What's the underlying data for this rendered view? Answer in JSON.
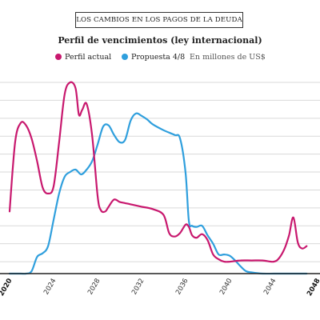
{
  "header": {
    "kicker": "LOS CAMBIOS EN LOS PAGOS DE LA DEUDA",
    "title": "Perfil de vencimientos (ley internacional)",
    "note": "En millones de US$"
  },
  "colors": {
    "actual": "#c8186e",
    "propuesta": "#2f9fdd",
    "grid": "#d9d9d9",
    "axis": "#222222"
  },
  "chart_data": {
    "type": "line",
    "title": "Perfil de vencimientos (ley internacional)",
    "xlabel": "",
    "ylabel": "",
    "units": "En millones de US$",
    "xlim": [
      2020,
      2047
    ],
    "ylim": [
      0,
      16000
    ],
    "grid": true,
    "legend": "top",
    "xticks": [
      "2020",
      "2024",
      "2028",
      "2032",
      "2036",
      "2040",
      "2044",
      "2048"
    ],
    "series": [
      {
        "name": "Perfil actual",
        "color": "#c8186e",
        "x": [
          2020,
          2020.5,
          2021,
          2021.5,
          2022,
          2022.5,
          2023,
          2023.5,
          2024,
          2024.5,
          2025,
          2025.5,
          2026,
          2026.3,
          2026.6,
          2027,
          2027.5,
          2028,
          2028.3,
          2028.7,
          2029,
          2029.5,
          2030,
          2030.5,
          2031,
          2032,
          2033,
          2034,
          2034.5,
          2035,
          2035.5,
          2036,
          2036.3,
          2036.6,
          2037,
          2037.5,
          2038,
          2038.5,
          2039,
          2039.5,
          2040,
          2041,
          2042,
          2043,
          2044,
          2044.5,
          2045,
          2045.4,
          2045.8,
          2046.2,
          2046.6,
          2047
        ],
        "values": [
          5200,
          11000,
          12600,
          12400,
          11300,
          9400,
          7200,
          6700,
          7300,
          11000,
          15000,
          16000,
          15500,
          13300,
          13700,
          14200,
          11600,
          6500,
          5300,
          5200,
          5600,
          6200,
          6000,
          5900,
          5800,
          5600,
          5400,
          4900,
          3400,
          3100,
          3400,
          4100,
          3900,
          3200,
          3000,
          3300,
          2800,
          1600,
          1200,
          1000,
          1000,
          1100,
          1100,
          1100,
          1000,
          1300,
          2100,
          3200,
          4700,
          2600,
          2100,
          2300
        ]
      },
      {
        "name": "Propuesta 4/8",
        "color": "#2f9fdd",
        "x": [
          2020,
          2021,
          2021.5,
          2022,
          2022.5,
          2023,
          2023.5,
          2024,
          2024.5,
          2025,
          2025.5,
          2026,
          2026.5,
          2027,
          2027.5,
          2028,
          2028.5,
          2029,
          2029.5,
          2030,
          2030.5,
          2031,
          2031.5,
          2032,
          2032.5,
          2033,
          2034,
          2035,
          2035.5,
          2036,
          2036.3,
          2036.6,
          2037,
          2037.5,
          2038,
          2038.5,
          2039,
          2039.5,
          2040,
          2040.5,
          2041,
          2041.5,
          2042,
          2043,
          2044,
          2045,
          2046,
          2047
        ],
        "values": [
          0,
          0,
          0,
          200,
          1400,
          1700,
          2300,
          4500,
          6700,
          8100,
          8500,
          8700,
          8300,
          8700,
          9400,
          10800,
          12300,
          12400,
          11600,
          11000,
          11200,
          12800,
          13400,
          13200,
          12900,
          12500,
          12000,
          11600,
          11300,
          8400,
          4400,
          4000,
          3900,
          4000,
          3200,
          2500,
          1600,
          1600,
          1500,
          1100,
          600,
          200,
          100,
          0,
          0,
          0,
          0,
          0
        ]
      }
    ]
  }
}
